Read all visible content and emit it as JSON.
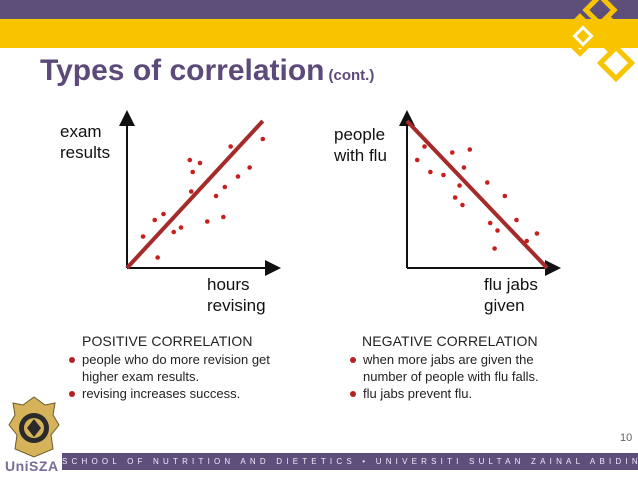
{
  "slide": {
    "title": "Types of correlation",
    "title_sub": "(cont.)",
    "page_number": "10",
    "footer": "SCHOOL OF NUTRITION AND DIETETICS • UNIVERSITI SULTAN ZAINAL ABIDIN",
    "logo_text": "UniSZA"
  },
  "colors": {
    "purple": "#5d4f7a",
    "gold": "#f8c400",
    "trend": "#a52a2a",
    "points": "#c81e1e"
  },
  "chart_data": [
    {
      "type": "scatter",
      "xlabel": "hours revising",
      "ylabel": "exam results",
      "xlim": [
        0,
        10
      ],
      "ylim": [
        0,
        10
      ],
      "points": [
        [
          1.1,
          2.1
        ],
        [
          1.9,
          3.2
        ],
        [
          2.5,
          3.6
        ],
        [
          3.2,
          2.4
        ],
        [
          3.7,
          2.7
        ],
        [
          2.1,
          0.7
        ],
        [
          4.4,
          5.1
        ],
        [
          4.5,
          6.4
        ],
        [
          4.3,
          7.2
        ],
        [
          5.0,
          7.0
        ],
        [
          5.5,
          3.1
        ],
        [
          6.1,
          4.8
        ],
        [
          6.6,
          3.4
        ],
        [
          6.7,
          5.4
        ],
        [
          7.6,
          6.1
        ],
        [
          8.4,
          6.7
        ],
        [
          7.1,
          8.1
        ],
        [
          9.3,
          8.6
        ]
      ],
      "trend": [
        [
          0,
          0
        ],
        [
          9.3,
          9.8
        ]
      ],
      "heading": "POSITIVE CORRELATION",
      "bullets": [
        "people who do more revision get higher exam results.",
        "revising increases success."
      ]
    },
    {
      "type": "scatter",
      "xlabel": "flu jabs given",
      "ylabel": "people with flu",
      "xlim": [
        0,
        10
      ],
      "ylim": [
        0,
        10
      ],
      "points": [
        [
          0.7,
          7.2
        ],
        [
          1.2,
          8.1
        ],
        [
          1.6,
          6.4
        ],
        [
          2.5,
          6.2
        ],
        [
          3.1,
          7.7
        ],
        [
          3.6,
          5.5
        ],
        [
          3.9,
          6.7
        ],
        [
          4.3,
          7.9
        ],
        [
          3.3,
          4.7
        ],
        [
          3.8,
          4.2
        ],
        [
          5.5,
          5.7
        ],
        [
          5.7,
          3.0
        ],
        [
          6.2,
          2.5
        ],
        [
          6.0,
          1.3
        ],
        [
          6.7,
          4.8
        ],
        [
          7.5,
          3.2
        ],
        [
          8.2,
          1.8
        ],
        [
          8.9,
          2.3
        ]
      ],
      "trend": [
        [
          0,
          9.8
        ],
        [
          9.6,
          0
        ]
      ],
      "heading": "NEGATIVE CORRELATION",
      "bullets": [
        "when more jabs are given the number of people with flu falls.",
        "flu jabs prevent flu."
      ]
    }
  ]
}
